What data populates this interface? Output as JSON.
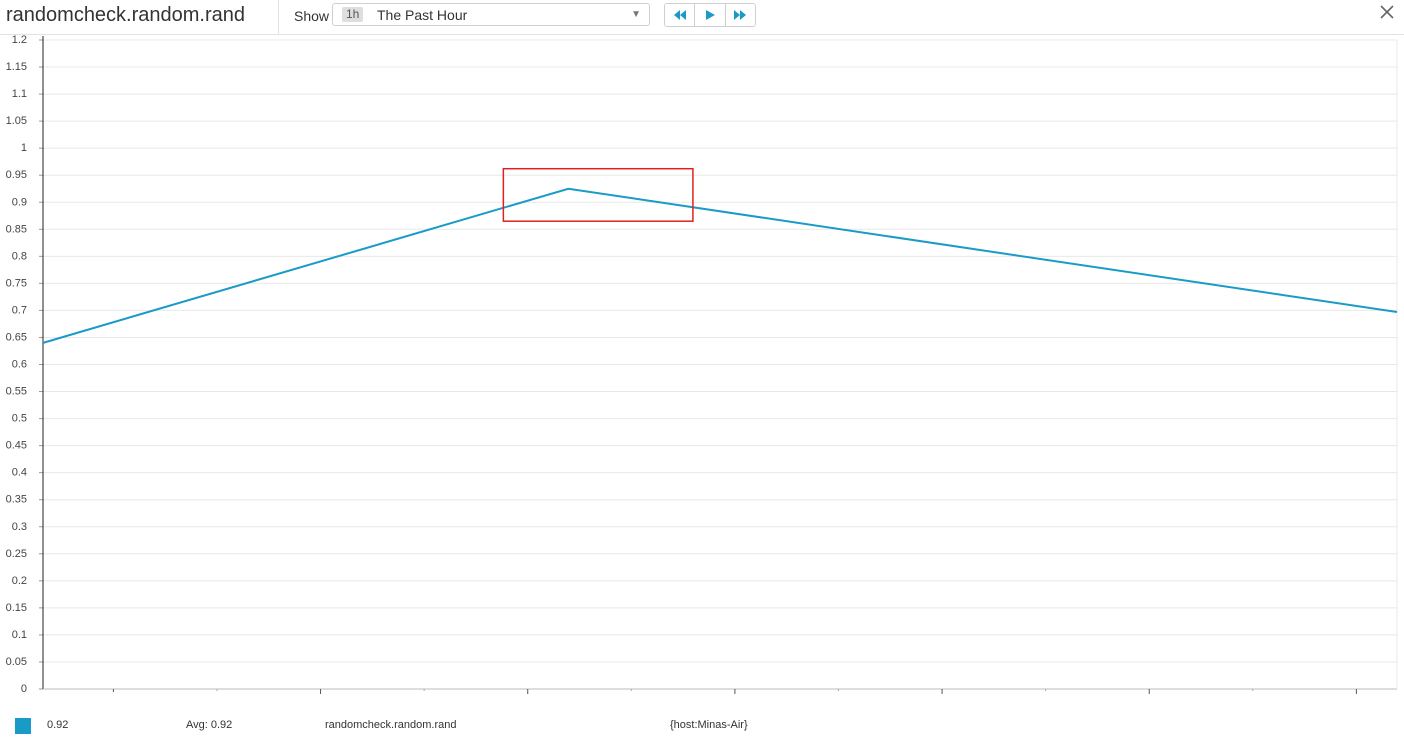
{
  "header": {
    "title": "randomcheck.random.rand",
    "show_label": "Show",
    "time_badge": "1h",
    "time_range": "The Past Hour"
  },
  "icons": {
    "rewind": "rewind-icon",
    "play": "play-icon",
    "forward": "fast-forward-icon",
    "close": "close-icon",
    "caret": "chevron-down-icon"
  },
  "colors": {
    "series": "#1a9bc7",
    "accent": "#1a9bc7",
    "highlight": "#e02020"
  },
  "chart_data": {
    "type": "line",
    "ylim": [
      0,
      1.2
    ],
    "yticks": [
      "0",
      "0.05",
      "0.1",
      "0.15",
      "0.2",
      "0.25",
      "0.3",
      "0.35",
      "0.4",
      "0.45",
      "0.5",
      "0.55",
      "0.6",
      "0.65",
      "0.7",
      "0.75",
      "0.8",
      "0.85",
      "0.9",
      "0.95",
      "1",
      "1.05",
      "1.1",
      "1.15",
      "1.2"
    ],
    "grid": true,
    "series": [
      {
        "points": [
          [
            0,
            0.64
          ],
          [
            0.388,
            0.925
          ],
          [
            1,
            0.697
          ]
        ]
      }
    ],
    "highlight_box": {
      "x": [
        0.34,
        0.48
      ],
      "y": [
        0.865,
        0.962
      ]
    }
  },
  "legend": {
    "value": "0.92",
    "avg": "Avg: 0.92",
    "metric": "randomcheck.random.rand",
    "tags": "{host:Minas-Air}"
  }
}
